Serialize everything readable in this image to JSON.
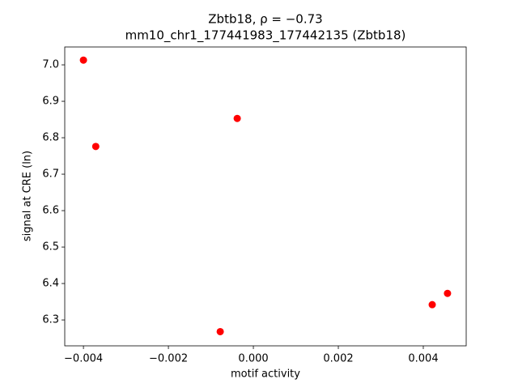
{
  "chart_data": {
    "type": "scatter",
    "title": "Zbtb18, ρ = −0.73",
    "subtitle": "mm10_chr1_177441983_177442135 (Zbtb18)",
    "x_label": "motif activity",
    "y_label": "signal at CRE (ln)",
    "color": "#ff0000",
    "x": [
      -0.004,
      -0.00371,
      -0.00038,
      -0.00078,
      0.00421,
      0.00457
    ],
    "y": [
      7.013,
      6.776,
      6.853,
      6.268,
      6.342,
      6.373
    ],
    "xlim": [
      -0.00444,
      0.00501
    ],
    "ylim": [
      6.229,
      7.049
    ],
    "xticks": [
      {
        "value": -0.004,
        "label": "−0.004"
      },
      {
        "value": -0.002,
        "label": "−0.002"
      },
      {
        "value": 0,
        "label": "0.000"
      },
      0.002,
      0.004
    ],
    "yticks": [
      6.3,
      6.4,
      6.5,
      6.6,
      6.7,
      6.8,
      6.9,
      {
        "value": 7,
        "label": "7.0"
      }
    ],
    "grid": false
  }
}
